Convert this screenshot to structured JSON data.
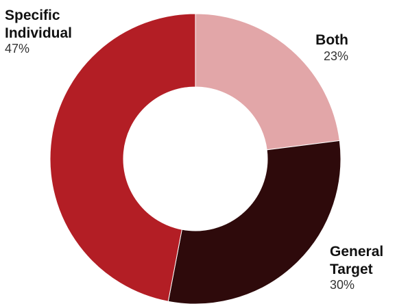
{
  "chart_data": {
    "type": "pie",
    "donut": true,
    "slices": [
      {
        "label_lines": [
          "Both"
        ],
        "value": 23,
        "value_label": "23%",
        "color": "#e2a6a8"
      },
      {
        "label_lines": [
          "General",
          "Target"
        ],
        "value": 30,
        "value_label": "30%",
        "color": "#2e0a0b"
      },
      {
        "label_lines": [
          "Specific",
          "Individual"
        ],
        "value": 47,
        "value_label": "47%",
        "color": "#b31e25"
      }
    ]
  }
}
